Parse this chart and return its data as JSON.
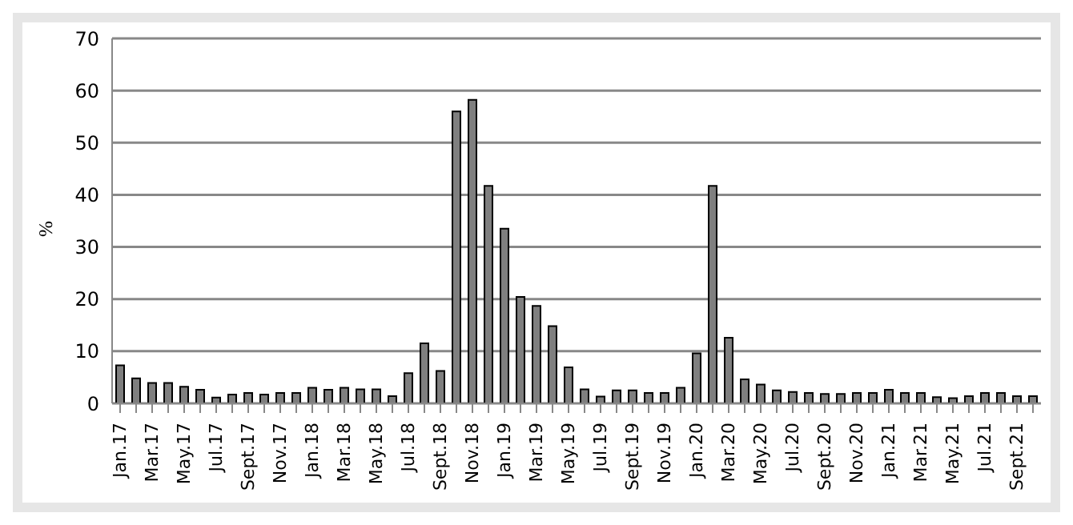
{
  "chart_data": {
    "type": "bar",
    "ylabel": "%",
    "categories": [
      "Jan.17",
      null,
      "Mar.17",
      null,
      "May.17",
      null,
      "Jul.17",
      null,
      "Sept.17",
      null,
      "Nov.17",
      null,
      "Jan.18",
      null,
      "Mar.18",
      null,
      "May.18",
      null,
      "Jul.18",
      null,
      "Sept.18",
      null,
      "Nov.18",
      null,
      "Jan.19",
      null,
      "Mar.19",
      null,
      "May.19",
      null,
      "Jul.19",
      null,
      "Sept.19",
      null,
      "Nov.19",
      null,
      "Jan.20",
      null,
      "Mar.20",
      null,
      "May.20",
      null,
      "Jul.20",
      null,
      "Sept.20",
      null,
      "Nov.20",
      null,
      "Jan.21",
      null,
      "Mar.21",
      null,
      "May.21",
      null,
      "Jul.21",
      null,
      "Sept.21",
      null
    ],
    "values": [
      7.3,
      4.8,
      3.9,
      3.9,
      3.2,
      2.6,
      1.1,
      1.7,
      2.0,
      1.7,
      2.0,
      2.0,
      3.0,
      2.6,
      3.0,
      2.7,
      2.7,
      1.4,
      5.8,
      11.5,
      6.2,
      56,
      58.2,
      41.7,
      33.5,
      20.4,
      18.7,
      14.8,
      6.9,
      2.7,
      1.3,
      2.5,
      2.5,
      2.0,
      2.0,
      3.0,
      9.6,
      41.7,
      12.6,
      4.6,
      3.6,
      2.5,
      2.2,
      2.0,
      1.8,
      1.8,
      2.0,
      2.0,
      2.6,
      2.0,
      2.0,
      1.2,
      1.0,
      1.4,
      2.0,
      2.0,
      1.4,
      1.4
    ],
    "color": "#7f7f7f",
    "ylim": [
      0,
      70
    ],
    "yticks": [
      0,
      10,
      20,
      30,
      40,
      50,
      60,
      70
    ],
    "grid": "y",
    "legend": false
  }
}
